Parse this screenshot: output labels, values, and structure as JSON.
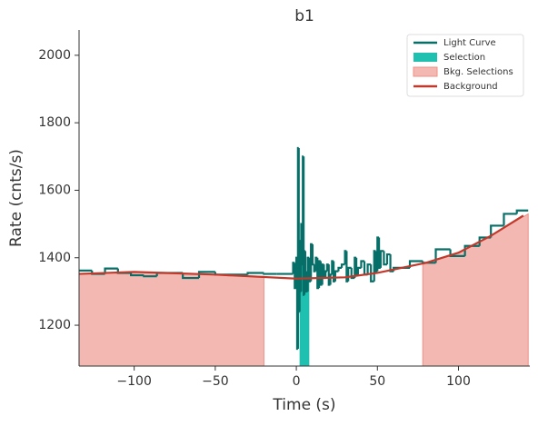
{
  "chart_data": {
    "type": "line",
    "title": "b1",
    "xlabel": "Time (s)",
    "ylabel": "Rate (cnts/s)",
    "xlim": [
      -134,
      144
    ],
    "ylim": [
      1079,
      2075
    ],
    "xticks": [
      {
        "value": -100,
        "label": "−100"
      },
      {
        "value": -50,
        "label": "−50"
      },
      0,
      50,
      100
    ],
    "yticks": [
      1200,
      1400,
      1600,
      1800,
      2000
    ],
    "grid": false,
    "legend": "upper right",
    "series": [
      {
        "name": "Light Curve",
        "color": "#076f68",
        "kind": "step",
        "x": [
          -134,
          -126,
          -118,
          -110,
          -102,
          -94,
          -86,
          -70,
          -60,
          -50,
          -30,
          -20,
          -12,
          -2,
          -1,
          0,
          0.5,
          1,
          1.5,
          2,
          2.5,
          3,
          3.5,
          4,
          4.5,
          5,
          5.5,
          6,
          7,
          8,
          9,
          10,
          11,
          12,
          13,
          14,
          15,
          16,
          17,
          18,
          19,
          20,
          21,
          22,
          23,
          24,
          26,
          28,
          30,
          31,
          32,
          34,
          36,
          37,
          38,
          40,
          42,
          44,
          46,
          48,
          49,
          50,
          51,
          52,
          54,
          56,
          58,
          60,
          70,
          78,
          86,
          95,
          104,
          113,
          120,
          128,
          136,
          143
        ],
        "values": [
          1362,
          1352,
          1368,
          1355,
          1348,
          1345,
          1355,
          1340,
          1358,
          1350,
          1355,
          1352,
          1352,
          1385,
          1310,
          1400,
          1130,
          1725,
          1240,
          1450,
          1300,
          1500,
          1380,
          1700,
          1290,
          1420,
          1360,
          1300,
          1400,
          1330,
          1440,
          1380,
          1360,
          1400,
          1310,
          1390,
          1320,
          1380,
          1340,
          1360,
          1380,
          1320,
          1350,
          1390,
          1330,
          1360,
          1370,
          1380,
          1420,
          1330,
          1370,
          1340,
          1400,
          1350,
          1370,
          1390,
          1350,
          1380,
          1330,
          1420,
          1360,
          1460,
          1370,
          1420,
          1380,
          1410,
          1360,
          1370,
          1390,
          1385,
          1425,
          1405,
          1435,
          1460,
          1495,
          1530,
          1540,
          1540
        ]
      },
      {
        "name": "Selection",
        "color": "#20c0b0",
        "kind": "step-area",
        "x": [
          2,
          3,
          4,
          5,
          6,
          8
        ],
        "values": [
          1340,
          1380,
          1350,
          1360,
          1350,
          1350
        ]
      },
      {
        "name": "Bkg. Selections",
        "color": "#f4b8b2",
        "kind": "area",
        "x": [
          -134,
          -100,
          -50,
          -20,
          0,
          78,
          100,
          120,
          143
        ],
        "values": [
          1352,
          1358,
          1350,
          1345,
          null,
          1380,
          1415,
          1465,
          1530
        ]
      },
      {
        "name": "Background",
        "color": "#c0392b",
        "kind": "line",
        "x": [
          -134,
          -100,
          -50,
          0,
          30,
          50,
          80,
          100,
          120,
          140
        ],
        "values": [
          1352,
          1358,
          1350,
          1338,
          1342,
          1355,
          1385,
          1415,
          1465,
          1525
        ]
      }
    ]
  }
}
